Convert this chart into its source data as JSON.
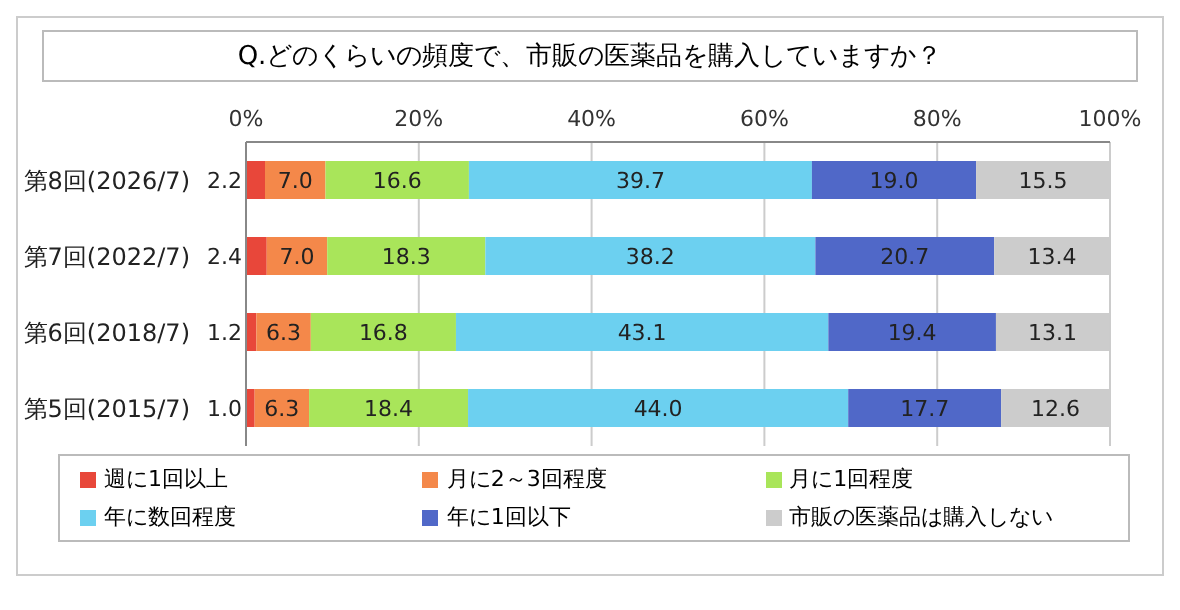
{
  "chart_data": {
    "type": "bar",
    "orientation": "horizontal",
    "stacked": true,
    "title": "Q.どのくらいの頻度で、市販の医薬品を購入していますか？",
    "categories": [
      "第8回(2026/7)",
      "第7回(2022/7)",
      "第6回(2018/7)",
      "第5回(2015/7)"
    ],
    "xlim": [
      0,
      100
    ],
    "xticks": [
      {
        "value": 0,
        "label": "0%"
      },
      {
        "value": 20,
        "label": "20%"
      },
      {
        "value": 40,
        "label": "40%"
      },
      {
        "value": 60,
        "label": "60%"
      },
      {
        "value": 80,
        "label": "80%"
      },
      {
        "value": 100,
        "label": "100%"
      }
    ],
    "grid": "x",
    "legend": "bottom",
    "series": [
      {
        "name": "週に1回以上",
        "color": "#e8473a",
        "values": [
          2.2,
          2.4,
          1.2,
          1.0
        ],
        "value_labels": [
          "2.2",
          "2.4",
          "1.2",
          "1.0"
        ]
      },
      {
        "name": "月に2～3回程度",
        "color": "#f4884a",
        "values": [
          7.0,
          7.0,
          6.3,
          6.3
        ],
        "value_labels": [
          "7.0",
          "7.0",
          "6.3",
          "6.3"
        ]
      },
      {
        "name": "月に1回程度",
        "color": "#a9e55a",
        "values": [
          16.6,
          18.3,
          16.8,
          18.4
        ],
        "value_labels": [
          "16.6",
          "18.3",
          "16.8",
          "18.4"
        ]
      },
      {
        "name": "年に数回程度",
        "color": "#6cd0f0",
        "values": [
          39.7,
          38.2,
          43.1,
          44.0
        ],
        "value_labels": [
          "39.7",
          "38.2",
          "43.1",
          "44.0"
        ]
      },
      {
        "name": "年に1回以下",
        "color": "#5068c8",
        "values": [
          19.0,
          20.7,
          19.4,
          17.7
        ],
        "value_labels": [
          "19.0",
          "20.7",
          "19.4",
          "17.7"
        ]
      },
      {
        "name": "市販の医薬品は購入しない",
        "color": "#cccccc",
        "values": [
          15.5,
          13.4,
          13.1,
          12.6
        ],
        "value_labels": [
          "15.5",
          "13.4",
          "13.1",
          "12.6"
        ]
      }
    ]
  }
}
